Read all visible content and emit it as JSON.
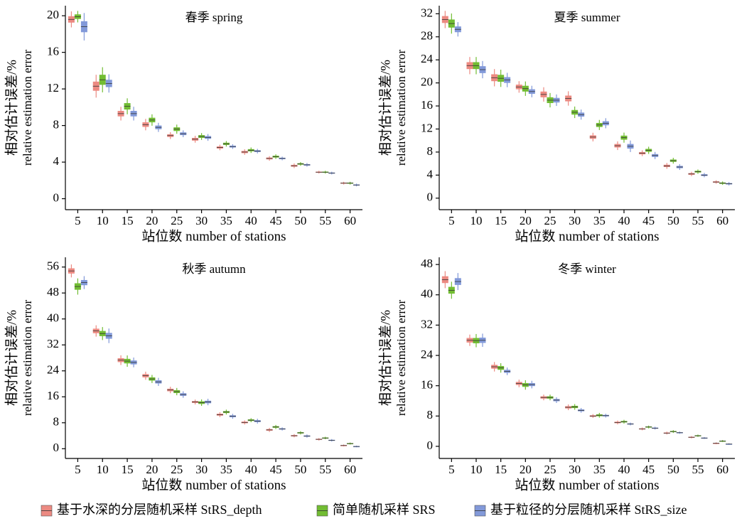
{
  "chart_data": [
    {
      "type": "box",
      "title": "春季 spring",
      "xlabel": "站位数 number of stations",
      "ylabel": [
        "相对估计误差/%",
        "relative estimation error"
      ],
      "categories": [
        5,
        10,
        15,
        20,
        25,
        30,
        35,
        40,
        45,
        50,
        55,
        60
      ],
      "ylim": [
        -1.2,
        21.1
      ],
      "yticks": [
        0,
        4,
        8,
        12,
        16,
        20
      ],
      "legend": "bottom",
      "series": [
        {
          "name": "基于水深的分层随机采样 StRS_depth",
          "color": "#ec8a82",
          "values": [
            19.6,
            12.3,
            9.3,
            8.1,
            6.9,
            6.5,
            5.6,
            5.1,
            4.4,
            3.6,
            2.9,
            1.7
          ],
          "errors": [
            0.35,
            0.5,
            0.3,
            0.25,
            0.15,
            0.15,
            0.12,
            0.12,
            0.1,
            0.1,
            0.06,
            0.06
          ]
        },
        {
          "name": "简单随机采样 SRS",
          "color": "#72bd33",
          "values": [
            19.9,
            13.0,
            10.1,
            8.6,
            7.6,
            6.8,
            6.0,
            5.3,
            4.6,
            3.8,
            2.9,
            1.7
          ],
          "errors": [
            0.25,
            0.55,
            0.35,
            0.25,
            0.2,
            0.15,
            0.12,
            0.12,
            0.1,
            0.08,
            0.06,
            0.06
          ]
        },
        {
          "name": "基于粒径的分层随机采样 StRS_size",
          "color": "#8299d9",
          "values": [
            18.8,
            12.6,
            9.3,
            7.8,
            7.1,
            6.7,
            5.7,
            5.2,
            4.4,
            3.7,
            2.8,
            1.5
          ],
          "errors": [
            0.6,
            0.4,
            0.3,
            0.2,
            0.15,
            0.15,
            0.1,
            0.1,
            0.08,
            0.08,
            0.06,
            0.06
          ]
        }
      ]
    },
    {
      "type": "box",
      "title": "夏季 summer",
      "xlabel": "站位数 number of stations",
      "ylabel": [
        "相对估计误差/%",
        "relative estimation error"
      ],
      "categories": [
        5,
        10,
        15,
        20,
        25,
        30,
        35,
        40,
        45,
        50,
        55,
        60
      ],
      "ylim": [
        -2,
        33.4
      ],
      "yticks": [
        0,
        4,
        8,
        12,
        16,
        20,
        24,
        28,
        32
      ],
      "series": [
        {
          "name": "基于水深的分层随机采样 StRS_depth",
          "color": "#ec8a82",
          "values": [
            31.0,
            23.0,
            20.9,
            19.3,
            18.0,
            17.3,
            10.6,
            9.1,
            7.8,
            5.6,
            4.2,
            2.8
          ],
          "errors": [
            0.6,
            0.6,
            0.6,
            0.4,
            0.5,
            0.5,
            0.3,
            0.3,
            0.2,
            0.2,
            0.15,
            0.12
          ]
        },
        {
          "name": "简单随机采样 SRS",
          "color": "#72bd33",
          "values": [
            30.3,
            23.0,
            20.8,
            19.0,
            17.0,
            14.9,
            12.7,
            10.5,
            8.3,
            6.5,
            4.6,
            2.6
          ],
          "errors": [
            0.7,
            0.6,
            0.6,
            0.5,
            0.5,
            0.4,
            0.35,
            0.35,
            0.25,
            0.2,
            0.15,
            0.12
          ]
        },
        {
          "name": "基于粒径的分层随机采样 StRS_size",
          "color": "#8299d9",
          "values": [
            29.3,
            22.3,
            20.5,
            18.5,
            17.0,
            14.5,
            13.0,
            9.0,
            7.4,
            5.4,
            4.0,
            2.5
          ],
          "errors": [
            0.5,
            0.6,
            0.5,
            0.4,
            0.4,
            0.35,
            0.35,
            0.4,
            0.25,
            0.2,
            0.15,
            0.12
          ]
        }
      ]
    },
    {
      "type": "box",
      "title": "秋季 autumn",
      "xlabel": "站位数 number of stations",
      "ylabel": [
        "相对估计误差/%",
        "relative estimation error"
      ],
      "categories": [
        5,
        10,
        15,
        20,
        25,
        30,
        35,
        40,
        45,
        50,
        55,
        60
      ],
      "ylim": [
        -3,
        59
      ],
      "yticks": [
        0,
        8,
        16,
        24,
        32,
        40,
        48,
        56
      ],
      "series": [
        {
          "name": "基于水深的分层随机采样 StRS_depth",
          "color": "#ec8a82",
          "values": [
            54.8,
            36.3,
            27.3,
            22.5,
            18.1,
            14.4,
            10.5,
            8.1,
            5.8,
            4.0,
            2.9,
            1.0
          ],
          "errors": [
            0.8,
            0.7,
            0.6,
            0.5,
            0.4,
            0.3,
            0.3,
            0.25,
            0.25,
            0.2,
            0.15,
            0.12
          ]
        },
        {
          "name": "简单随机采样 SRS",
          "color": "#72bd33",
          "values": [
            50.0,
            35.5,
            27.0,
            21.5,
            17.6,
            14.2,
            11.3,
            8.8,
            6.7,
            4.9,
            3.3,
            1.6
          ],
          "errors": [
            1.0,
            0.8,
            0.7,
            0.5,
            0.45,
            0.4,
            0.3,
            0.25,
            0.25,
            0.2,
            0.15,
            0.12
          ]
        },
        {
          "name": "基于粒径的分层随机采样 StRS_size",
          "color": "#8299d9",
          "values": [
            51.2,
            34.8,
            26.6,
            20.6,
            16.7,
            14.4,
            10.0,
            8.5,
            6.1,
            3.9,
            2.6,
            0.7
          ],
          "errors": [
            0.8,
            0.9,
            0.6,
            0.5,
            0.4,
            0.4,
            0.3,
            0.3,
            0.2,
            0.2,
            0.15,
            0.1
          ]
        }
      ]
    },
    {
      "type": "box",
      "title": "冬季 winter",
      "xlabel": "站位数 number of stations",
      "ylabel": [
        "相对估计误差/%",
        "relative estimation error"
      ],
      "categories": [
        5,
        10,
        15,
        20,
        25,
        30,
        35,
        40,
        45,
        50,
        55,
        60
      ],
      "ylim": [
        -3.2,
        49.9
      ],
      "yticks": [
        0,
        8,
        16,
        24,
        32,
        40,
        48
      ],
      "series": [
        {
          "name": "基于水深的分层随机采样 StRS_depth",
          "color": "#ec8a82",
          "values": [
            44.0,
            28.0,
            21.0,
            16.6,
            12.9,
            10.3,
            8.0,
            6.3,
            4.6,
            3.5,
            2.4,
            0.8
          ],
          "errors": [
            0.9,
            0.6,
            0.5,
            0.4,
            0.3,
            0.3,
            0.2,
            0.2,
            0.15,
            0.15,
            0.12,
            0.1
          ]
        },
        {
          "name": "简单随机采样 SRS",
          "color": "#72bd33",
          "values": [
            41.2,
            27.9,
            20.7,
            16.2,
            12.9,
            10.4,
            8.2,
            6.5,
            5.1,
            3.9,
            2.8,
            1.4
          ],
          "errors": [
            0.9,
            0.7,
            0.5,
            0.5,
            0.3,
            0.3,
            0.25,
            0.2,
            0.15,
            0.15,
            0.12,
            0.1
          ]
        },
        {
          "name": "基于粒径的分层随机采样 StRS_size",
          "color": "#8299d9",
          "values": [
            43.5,
            28.0,
            19.8,
            16.3,
            12.2,
            9.5,
            8.1,
            5.9,
            4.8,
            3.6,
            2.2,
            0.6
          ],
          "errors": [
            0.9,
            0.7,
            0.4,
            0.4,
            0.3,
            0.25,
            0.2,
            0.15,
            0.15,
            0.12,
            0.1,
            0.08
          ]
        }
      ]
    }
  ]
}
